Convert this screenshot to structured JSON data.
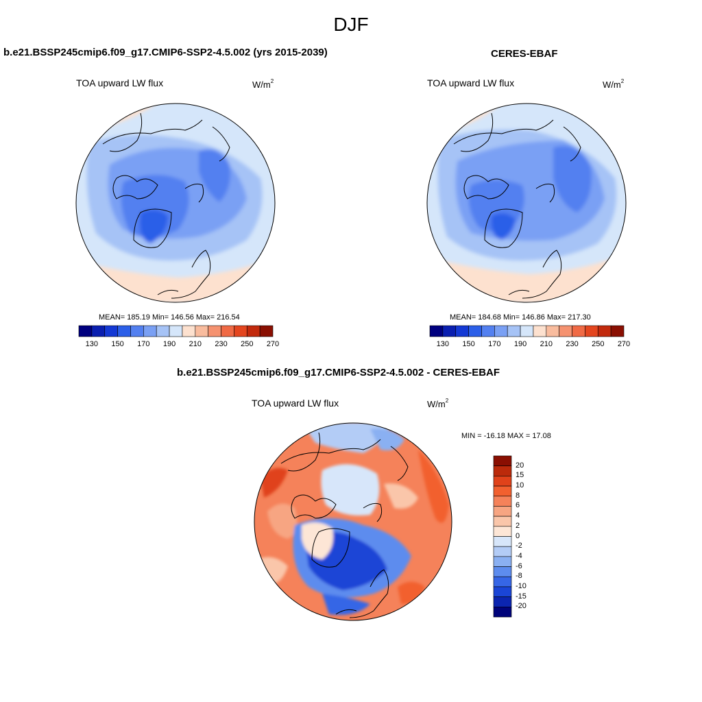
{
  "figure": {
    "title": "DJF"
  },
  "panels": {
    "model": {
      "title": "b.e21.BSSP245cmip6.f09_g17.CMIP6-SSP2-4.5.002 (yrs 2015-2039)",
      "variable": "TOA upward LW flux",
      "units_base": "W/m",
      "units_exp": "2",
      "stats": "MEAN= 185.19  Min= 146.56  Max= 216.54"
    },
    "obs": {
      "title": "CERES-EBAF",
      "variable": "TOA upward LW flux",
      "units_base": "W/m",
      "units_exp": "2",
      "stats": "MEAN= 184.68  Min= 146.86  Max= 217.30"
    },
    "diff": {
      "title": "b.e21.BSSP245cmip6.f09_g17.CMIP6-SSP2-4.5.002 - CERES-EBAF",
      "variable": "TOA upward LW flux",
      "units_base": "W/m",
      "units_exp": "2",
      "stats": "MIN = -16.18 MAX =  17.08"
    }
  },
  "colorbars": {
    "abs": {
      "colors": [
        "#00007f",
        "#0a1fb0",
        "#1439d4",
        "#2c5fe8",
        "#5380f0",
        "#7aa0f4",
        "#a6c3f6",
        "#d5e6fa",
        "#fde1cf",
        "#f9bc9e",
        "#f59270",
        "#f06a45",
        "#e4461f",
        "#c22a0d",
        "#8a0f02"
      ],
      "ticks": [
        "130",
        "150",
        "170",
        "190",
        "210",
        "230",
        "250",
        "270"
      ]
    },
    "diff": {
      "colors": [
        "#8a0f02",
        "#bb2a0b",
        "#e0421a",
        "#f2602f",
        "#f5825a",
        "#f7a582",
        "#fac6aa",
        "#fde6d6",
        "#d7e6fa",
        "#b3ccf6",
        "#8ab0f2",
        "#5d8cee",
        "#3666e6",
        "#1a45d6",
        "#0b25b0",
        "#00037a"
      ],
      "ticks": [
        "20",
        "15",
        "10",
        "8",
        "6",
        "4",
        "2",
        "0",
        "-2",
        "-4",
        "-6",
        "-8",
        "-10",
        "-15",
        "-20"
      ]
    }
  }
}
